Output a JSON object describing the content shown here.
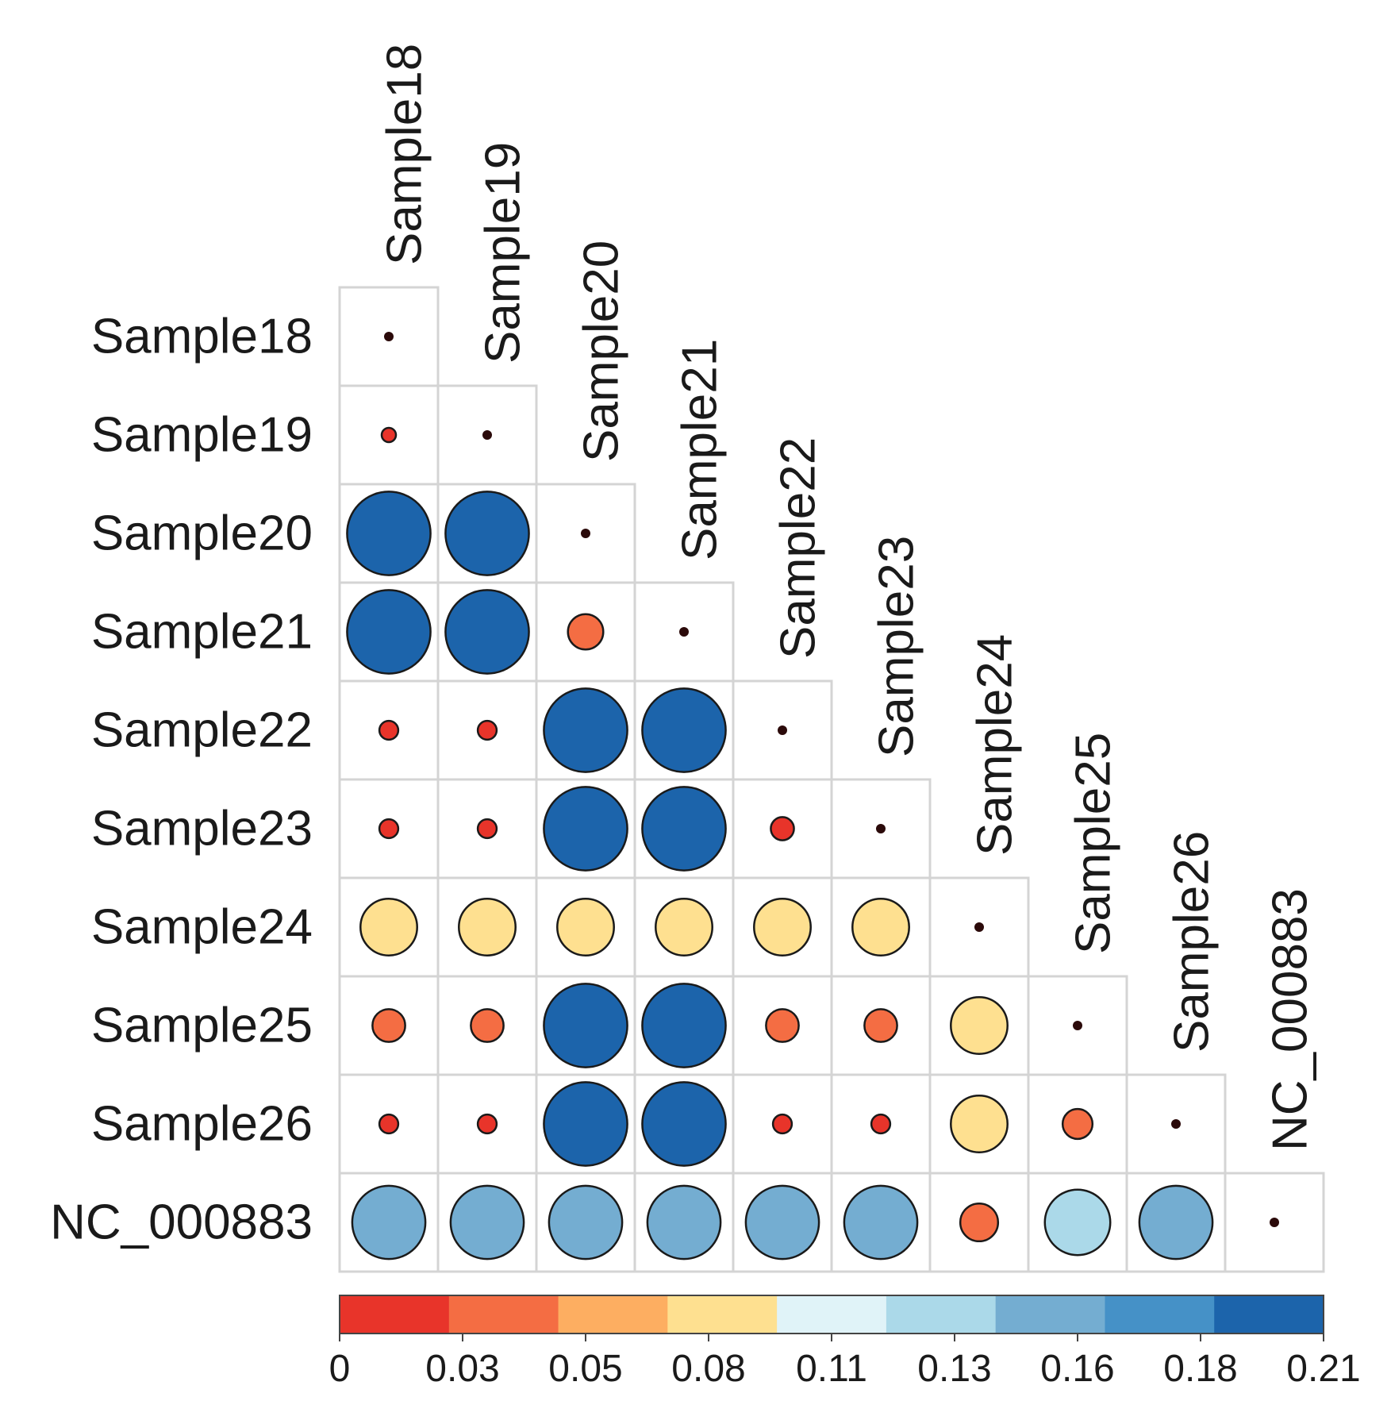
{
  "chart_data": {
    "type": "heatmap",
    "subtype": "lower-triangular bubble correlation matrix",
    "labels": [
      "Sample18",
      "Sample19",
      "Sample20",
      "Sample21",
      "Sample22",
      "Sample23",
      "Sample24",
      "Sample25",
      "Sample26",
      "NC_000883"
    ],
    "matrix": [
      [
        0.0
      ],
      [
        0.005,
        0.0
      ],
      [
        0.195,
        0.195,
        0.0
      ],
      [
        0.195,
        0.195,
        0.035,
        0.0
      ],
      [
        0.01,
        0.01,
        0.195,
        0.195,
        0.0
      ],
      [
        0.01,
        0.01,
        0.195,
        0.195,
        0.015,
        0.0
      ],
      [
        0.09,
        0.09,
        0.09,
        0.09,
        0.09,
        0.09,
        0.0
      ],
      [
        0.03,
        0.03,
        0.195,
        0.195,
        0.03,
        0.03,
        0.09,
        0.0
      ],
      [
        0.01,
        0.01,
        0.195,
        0.195,
        0.01,
        0.01,
        0.09,
        0.025,
        0.0
      ],
      [
        0.15,
        0.15,
        0.15,
        0.15,
        0.15,
        0.15,
        0.04,
        0.12,
        0.15,
        0.0
      ]
    ],
    "value_range": [
      0,
      0.21
    ],
    "colorbar": {
      "ticks": [
        0,
        0.03,
        0.05,
        0.08,
        0.11,
        0.13,
        0.16,
        0.18,
        0.21
      ],
      "tick_labels": [
        "0",
        "0.03",
        "0.05",
        "0.08",
        "0.11",
        "0.13",
        "0.16",
        "0.18",
        "0.21"
      ],
      "colors": [
        "#e8342a",
        "#f46d43",
        "#fdae61",
        "#fee090",
        "#e0f3f8",
        "#abd9e9",
        "#74add1",
        "#4591c7",
        "#1c64ab"
      ],
      "orientation": "horizontal",
      "placement": "bottom"
    }
  }
}
